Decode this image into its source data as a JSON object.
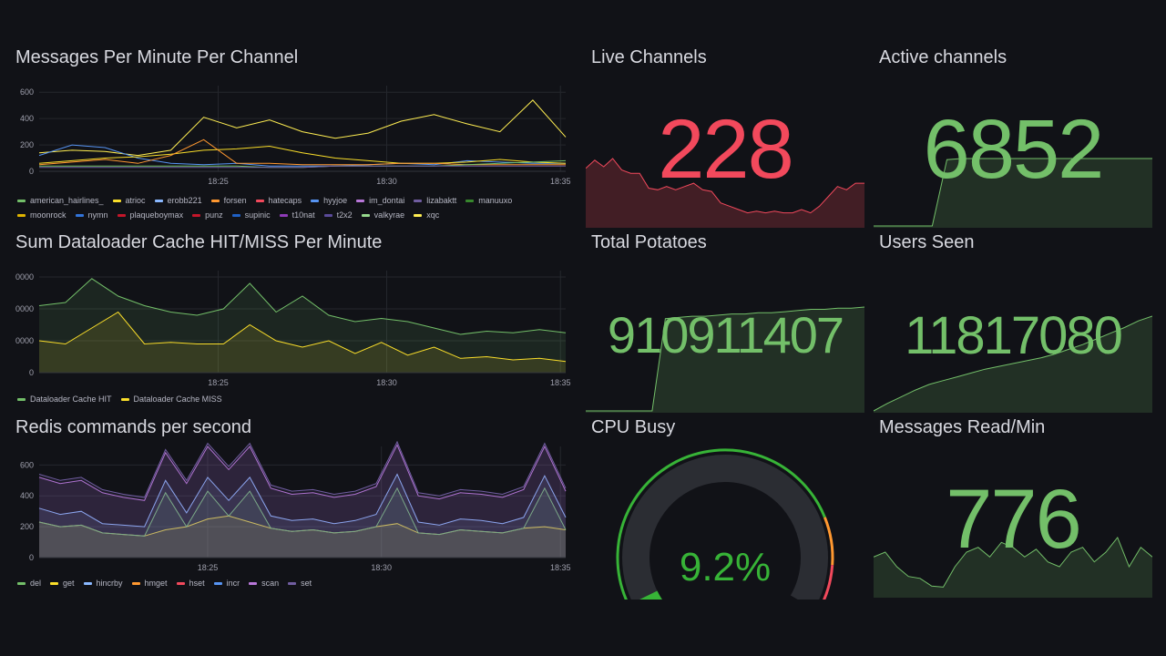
{
  "panels": {
    "messages": {
      "title": "Messages Per Minute Per Channel",
      "legend": [
        {
          "name": "american_hairlines_",
          "color": "#73bf69"
        },
        {
          "name": "atrioc",
          "color": "#fade2a"
        },
        {
          "name": "erobb221",
          "color": "#8ab8ff"
        },
        {
          "name": "forsen",
          "color": "#ff9830"
        },
        {
          "name": "hatecaps",
          "color": "#f2495c"
        },
        {
          "name": "hyyjoe",
          "color": "#5794f2"
        },
        {
          "name": "im_dontai",
          "color": "#b877d9"
        },
        {
          "name": "lizabaktt",
          "color": "#705da0"
        },
        {
          "name": "manuuxo",
          "color": "#37872d"
        },
        {
          "name": "moonrock",
          "color": "#e0b400"
        },
        {
          "name": "nymn",
          "color": "#3274d9"
        },
        {
          "name": "plaqueboymax",
          "color": "#c4162a"
        },
        {
          "name": "punz",
          "color": "#c4162a"
        },
        {
          "name": "supinic",
          "color": "#1f60c4"
        },
        {
          "name": "t10nat",
          "color": "#8f3bb8"
        },
        {
          "name": "t2x2",
          "color": "#5a4a99"
        },
        {
          "name": "valkyrae",
          "color": "#96d98d"
        },
        {
          "name": "xqc",
          "color": "#ffee52"
        }
      ]
    },
    "cache": {
      "title": "Sum Dataloader Cache HIT/MISS Per Minute",
      "legend": [
        {
          "name": "Dataloader Cache HIT",
          "color": "#73bf69"
        },
        {
          "name": "Dataloader Cache MISS",
          "color": "#fade2a"
        }
      ]
    },
    "redis": {
      "title": "Redis commands per second",
      "legend": [
        {
          "name": "del",
          "color": "#73bf69"
        },
        {
          "name": "get",
          "color": "#fade2a"
        },
        {
          "name": "hincrby",
          "color": "#8ab8ff"
        },
        {
          "name": "hmget",
          "color": "#ff9830"
        },
        {
          "name": "hset",
          "color": "#f2495c"
        },
        {
          "name": "incr",
          "color": "#5794f2"
        },
        {
          "name": "scan",
          "color": "#b877d9"
        },
        {
          "name": "set",
          "color": "#705da0"
        }
      ]
    },
    "live": {
      "title": "Live Channels",
      "value": "228",
      "color": "#f2495c"
    },
    "active": {
      "title": "Active channels",
      "value": "6852",
      "color": "#73bf69"
    },
    "potatoes": {
      "title": "Total Potatoes",
      "value": "910911407",
      "color": "#73bf69"
    },
    "users": {
      "title": "Users Seen",
      "value": "11817080",
      "color": "#73bf69"
    },
    "cpu": {
      "title": "CPU Busy",
      "value": "9.2%",
      "percent": 9.2,
      "color": "#37b337"
    },
    "read": {
      "title": "Messages Read/Min",
      "value": "776",
      "color": "#73bf69"
    }
  },
  "chart_data": [
    {
      "type": "line",
      "title": "Messages Per Minute Per Channel",
      "x": [
        "18:20",
        "18:21",
        "18:22",
        "18:23",
        "18:24",
        "18:25",
        "18:26",
        "18:27",
        "18:28",
        "18:29",
        "18:30",
        "18:31",
        "18:32",
        "18:33",
        "18:34",
        "18:35",
        "18:36"
      ],
      "x_ticks": [
        "18:25",
        "18:30",
        "18:35"
      ],
      "y_ticks": [
        0,
        200,
        400,
        600
      ],
      "ylim": [
        0,
        650
      ],
      "series": [
        {
          "name": "xqc",
          "color": "#ffee52",
          "values": [
            140,
            160,
            150,
            120,
            160,
            410,
            330,
            390,
            300,
            250,
            290,
            380,
            430,
            360,
            300,
            540,
            260
          ]
        },
        {
          "name": "hyyjoe",
          "color": "#5794f2",
          "values": [
            120,
            200,
            180,
            100,
            60,
            50,
            60,
            40,
            40,
            40,
            50,
            60,
            50,
            80,
            70,
            60,
            60
          ]
        },
        {
          "name": "atrioc",
          "color": "#fade2a",
          "values": [
            60,
            80,
            100,
            110,
            130,
            160,
            170,
            190,
            140,
            100,
            80,
            60,
            60,
            70,
            90,
            70,
            60
          ]
        },
        {
          "name": "forsen",
          "color": "#ff9830",
          "values": [
            50,
            70,
            90,
            60,
            120,
            240,
            60,
            60,
            50,
            50,
            50,
            60,
            60,
            50,
            50,
            50,
            50
          ]
        },
        {
          "name": "american_hairlines_",
          "color": "#73bf69",
          "values": [
            40,
            40,
            40,
            40,
            40,
            40,
            40,
            30,
            30,
            40,
            40,
            40,
            40,
            50,
            60,
            70,
            80
          ]
        },
        {
          "name": "lizabaktt",
          "color": "#705da0",
          "values": [
            30,
            30,
            30,
            30,
            30,
            30,
            30,
            30,
            30,
            40,
            40,
            40,
            40,
            40,
            40,
            40,
            40
          ]
        }
      ]
    },
    {
      "type": "area",
      "title": "Sum Dataloader Cache HIT/MISS Per Minute",
      "x_ticks": [
        "18:25",
        "18:30",
        "18:35"
      ],
      "y_ticks": [
        0,
        10000,
        20000,
        30000
      ],
      "ylim": [
        0,
        32000
      ],
      "series": [
        {
          "name": "Dataloader Cache HIT",
          "color": "#73bf69",
          "values": [
            21000,
            22000,
            29500,
            24000,
            21000,
            19000,
            18000,
            20000,
            28000,
            19000,
            24000,
            18000,
            16000,
            17000,
            16000,
            14000,
            12000,
            13000,
            12500,
            13500,
            12500
          ]
        },
        {
          "name": "Dataloader Cache MISS",
          "color": "#fade2a",
          "values": [
            10000,
            9000,
            14000,
            19000,
            9000,
            9500,
            9000,
            9000,
            15000,
            10000,
            8000,
            10000,
            6000,
            9500,
            5500,
            8000,
            4500,
            5000,
            4000,
            4500,
            3500
          ]
        }
      ]
    },
    {
      "type": "area",
      "title": "Redis commands per second",
      "x_ticks": [
        "18:25",
        "18:30",
        "18:35"
      ],
      "y_ticks": [
        0,
        200,
        400,
        600
      ],
      "ylim": [
        0,
        720
      ],
      "series": [
        {
          "name": "get",
          "color": "#fade2a",
          "values": [
            230,
            200,
            210,
            160,
            150,
            140,
            180,
            200,
            250,
            270,
            230,
            190,
            170,
            180,
            160,
            170,
            200,
            220,
            160,
            150,
            180,
            170,
            160,
            190,
            200,
            180
          ]
        },
        {
          "name": "del",
          "color": "#73bf69",
          "values": [
            0,
            0,
            0,
            0,
            0,
            0,
            240,
            0,
            180,
            0,
            200,
            0,
            0,
            0,
            0,
            0,
            0,
            230,
            0,
            0,
            0,
            0,
            0,
            0,
            250,
            0
          ]
        },
        {
          "name": "hincrby",
          "color": "#8ab8ff",
          "values": [
            90,
            80,
            90,
            60,
            60,
            60,
            80,
            90,
            90,
            100,
            90,
            80,
            70,
            70,
            60,
            70,
            80,
            90,
            70,
            60,
            70,
            70,
            60,
            70,
            80,
            80
          ]
        },
        {
          "name": "scan",
          "color": "#b877d9",
          "values": [
            200,
            200,
            200,
            200,
            180,
            170,
            180,
            190,
            200,
            200,
            200,
            180,
            170,
            170,
            170,
            170,
            180,
            190,
            170,
            170,
            170,
            170,
            170,
            180,
            190,
            170
          ]
        },
        {
          "name": "set",
          "color": "#705da0",
          "values": [
            20,
            20,
            20,
            20,
            20,
            20,
            20,
            20,
            20,
            20,
            20,
            20,
            20,
            20,
            20,
            20,
            20,
            20,
            20,
            20,
            20,
            20,
            20,
            20,
            20,
            20
          ]
        }
      ]
    }
  ],
  "sparklines": {
    "live": [
      175,
      200,
      180,
      205,
      170,
      160,
      160,
      115,
      110,
      120,
      110,
      120,
      130,
      110,
      105,
      70,
      60,
      50,
      40,
      45,
      40,
      45,
      40,
      40,
      50,
      40,
      60,
      90,
      120,
      110,
      130,
      130
    ],
    "active": [
      0,
      0,
      0,
      0,
      0,
      6300,
      6400,
      6400,
      6400,
      6400,
      6400,
      6400,
      6400,
      6400,
      6400,
      6400,
      6400,
      6400,
      6400,
      6400
    ],
    "potatoes": [
      0,
      0,
      0,
      0,
      0,
      0,
      8000000,
      8100000,
      8200000,
      8200000,
      8300000,
      8400000,
      8400000,
      8500000,
      8500000,
      8600000,
      8700000,
      8800000,
      8800000,
      8900000,
      8900000,
      9000000
    ],
    "users": [
      0,
      8,
      15,
      22,
      28,
      32,
      36,
      40,
      44,
      47,
      50,
      53,
      56,
      60,
      65,
      70,
      76,
      82,
      88,
      95,
      100
    ],
    "read": [
      400,
      450,
      300,
      200,
      180,
      100,
      90,
      300,
      450,
      500,
      400,
      550,
      500,
      400,
      480,
      350,
      300,
      450,
      500,
      350,
      450,
      600,
      300,
      500,
      400
    ]
  }
}
